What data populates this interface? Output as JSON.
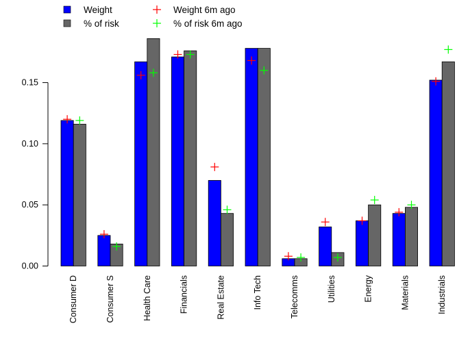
{
  "chart_data": {
    "type": "bar",
    "categories": [
      "Consumer D",
      "Consumer S",
      "Health Care",
      "Financials",
      "Real Estate",
      "Info Tech",
      "Telecomms",
      "Utilities",
      "Energy",
      "Materials",
      "Industrials"
    ],
    "series": [
      {
        "name": "Weight",
        "kind": "bar",
        "color": "#0000ff",
        "values": [
          0.119,
          0.025,
          0.167,
          0.171,
          0.07,
          0.178,
          0.006,
          0.032,
          0.037,
          0.043,
          0.152
        ]
      },
      {
        "name": "% of risk",
        "kind": "bar",
        "color": "#666666",
        "values": [
          0.116,
          0.018,
          0.186,
          0.176,
          0.043,
          0.178,
          0.006,
          0.011,
          0.05,
          0.048,
          0.167
        ]
      },
      {
        "name": "Weight 6m ago",
        "kind": "marker",
        "marker": "+",
        "color": "#ff0000",
        "values": [
          0.12,
          0.026,
          0.156,
          0.173,
          0.081,
          0.168,
          0.008,
          0.036,
          0.037,
          0.044,
          0.151
        ]
      },
      {
        "name": "% of risk 6m ago",
        "kind": "marker",
        "marker": "+",
        "color": "#00ff00",
        "values": [
          0.119,
          0.016,
          0.158,
          0.173,
          0.046,
          0.16,
          0.007,
          0.007,
          0.054,
          0.05,
          0.177
        ]
      }
    ],
    "yticks": [
      "0.00",
      "0.05",
      "0.10",
      "0.15"
    ],
    "yticks_values": [
      0.0,
      0.05,
      0.1,
      0.15
    ],
    "ylim": [
      0,
      0.195
    ],
    "grid": false,
    "legend_position": "top-left"
  }
}
